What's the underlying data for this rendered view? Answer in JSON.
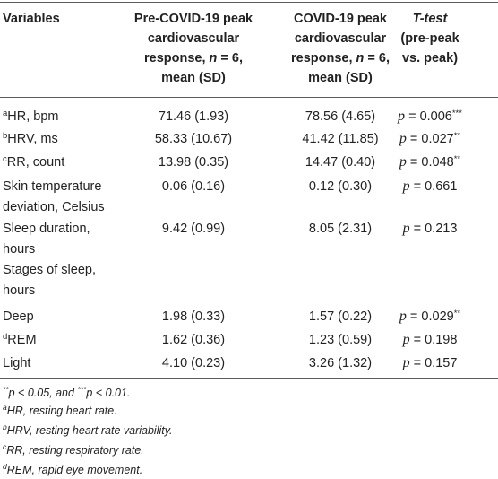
{
  "headers": {
    "col1": "Variables",
    "col2_lines": [
      "Pre-COVID-19 peak",
      "cardiovascular",
      "response, n = 6,",
      "mean (SD)"
    ],
    "col3_lines": [
      "COVID-19 peak",
      "cardiovascular",
      "response, n = 6,",
      "mean (SD)"
    ],
    "col4_lines": [
      "T-test",
      "(pre-peak",
      "vs. peak)"
    ]
  },
  "rows": [
    {
      "sup": "a",
      "label_lines": [
        "HR, bpm"
      ],
      "pre": "71.46 (1.93)",
      "post": "78.56 (4.65)",
      "p": "p = 0.006",
      "stars": "***"
    },
    {
      "sup": "b",
      "label_lines": [
        "HRV, ms"
      ],
      "pre": "58.33 (10.67)",
      "post": "41.42 (11.85)",
      "p": "p = 0.027",
      "stars": "**"
    },
    {
      "sup": "c",
      "label_lines": [
        "RR, count"
      ],
      "pre": "13.98 (0.35)",
      "post": "14.47 (0.40)",
      "p": "p = 0.048",
      "stars": "**"
    },
    {
      "sup": "",
      "label_lines": [
        "Skin temperature",
        "deviation, Celsius"
      ],
      "pre": "0.06 (0.16)",
      "post": "0.12 (0.30)",
      "p": "p = 0.661",
      "stars": ""
    },
    {
      "sup": "",
      "label_lines": [
        "Sleep duration,",
        "hours"
      ],
      "pre": "9.42 (0.99)",
      "post": "8.05 (2.31)",
      "p": "p = 0.213",
      "stars": ""
    },
    {
      "sup": "",
      "label_lines": [
        "Stages of sleep,",
        "hours"
      ],
      "pre": "",
      "post": "",
      "p": "",
      "stars": ""
    },
    {
      "sup": "",
      "label_lines": [
        "Deep"
      ],
      "pre": "1.98 (0.33)",
      "post": "1.57 (0.22)",
      "p": "p = 0.029",
      "stars": "**"
    },
    {
      "sup": "d",
      "label_lines": [
        "REM"
      ],
      "pre": "1.62 (0.36)",
      "post": "1.23 (0.59)",
      "p": "p = 0.198",
      "stars": ""
    },
    {
      "sup": "",
      "label_lines": [
        "Light"
      ],
      "pre": "4.10 (0.23)",
      "post": "3.26 (1.32)",
      "p": "p = 0.157",
      "stars": ""
    }
  ],
  "footnotes": {
    "significance": {
      "s1": "**",
      "t1": "p < 0.05, and ",
      "s2": "***",
      "t2": "p < 0.01."
    },
    "list": [
      {
        "sup": "a",
        "text": "HR, resting heart rate."
      },
      {
        "sup": "b",
        "text": "HRV, resting heart rate variability."
      },
      {
        "sup": "c",
        "text": "RR, resting respiratory rate."
      },
      {
        "sup": "d",
        "text": "REM, rapid eye movement."
      }
    ]
  }
}
